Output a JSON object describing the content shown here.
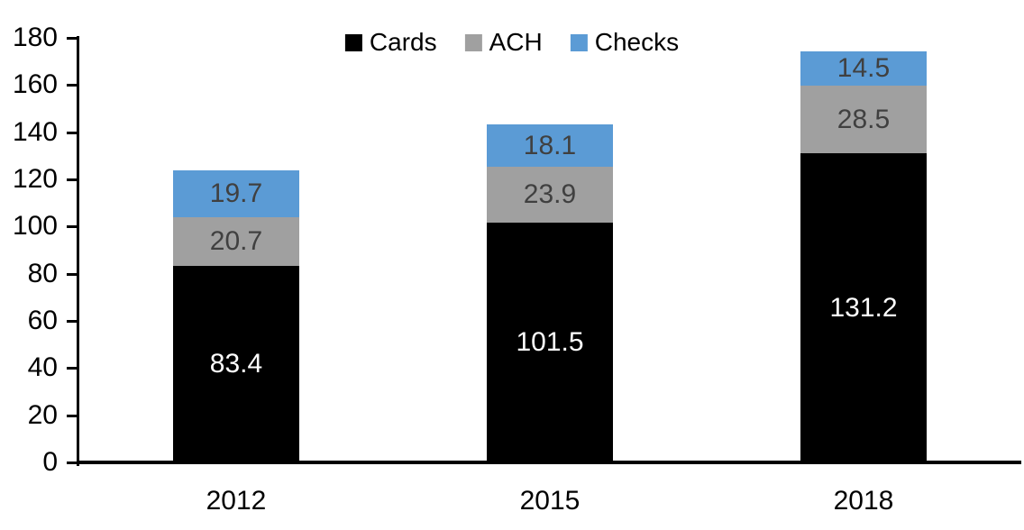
{
  "chart_data": {
    "type": "bar",
    "stacked": true,
    "title": "",
    "categories": [
      "2012",
      "2015",
      "2018"
    ],
    "series": [
      {
        "name": "Cards",
        "color": "#000000",
        "label_color": "#FFFFFF",
        "values": [
          83.4,
          101.5,
          131.2
        ]
      },
      {
        "name": "ACH",
        "color": "#A0A0A0",
        "label_color": "#404040",
        "values": [
          20.7,
          23.9,
          28.5
        ]
      },
      {
        "name": "Checks",
        "color": "#5B9BD5",
        "label_color": "#404040",
        "values": [
          19.7,
          18.1,
          14.5
        ]
      }
    ],
    "value_label_format": "one-decimal",
    "ylim": [
      0,
      180
    ],
    "y_ticks": [
      0,
      20,
      40,
      60,
      80,
      100,
      120,
      140,
      160,
      180
    ],
    "xlabel": "",
    "ylabel": "",
    "grid": false,
    "legend_position": "top-center",
    "axis_color": "#000000",
    "background_color": "#FFFFFF"
  }
}
